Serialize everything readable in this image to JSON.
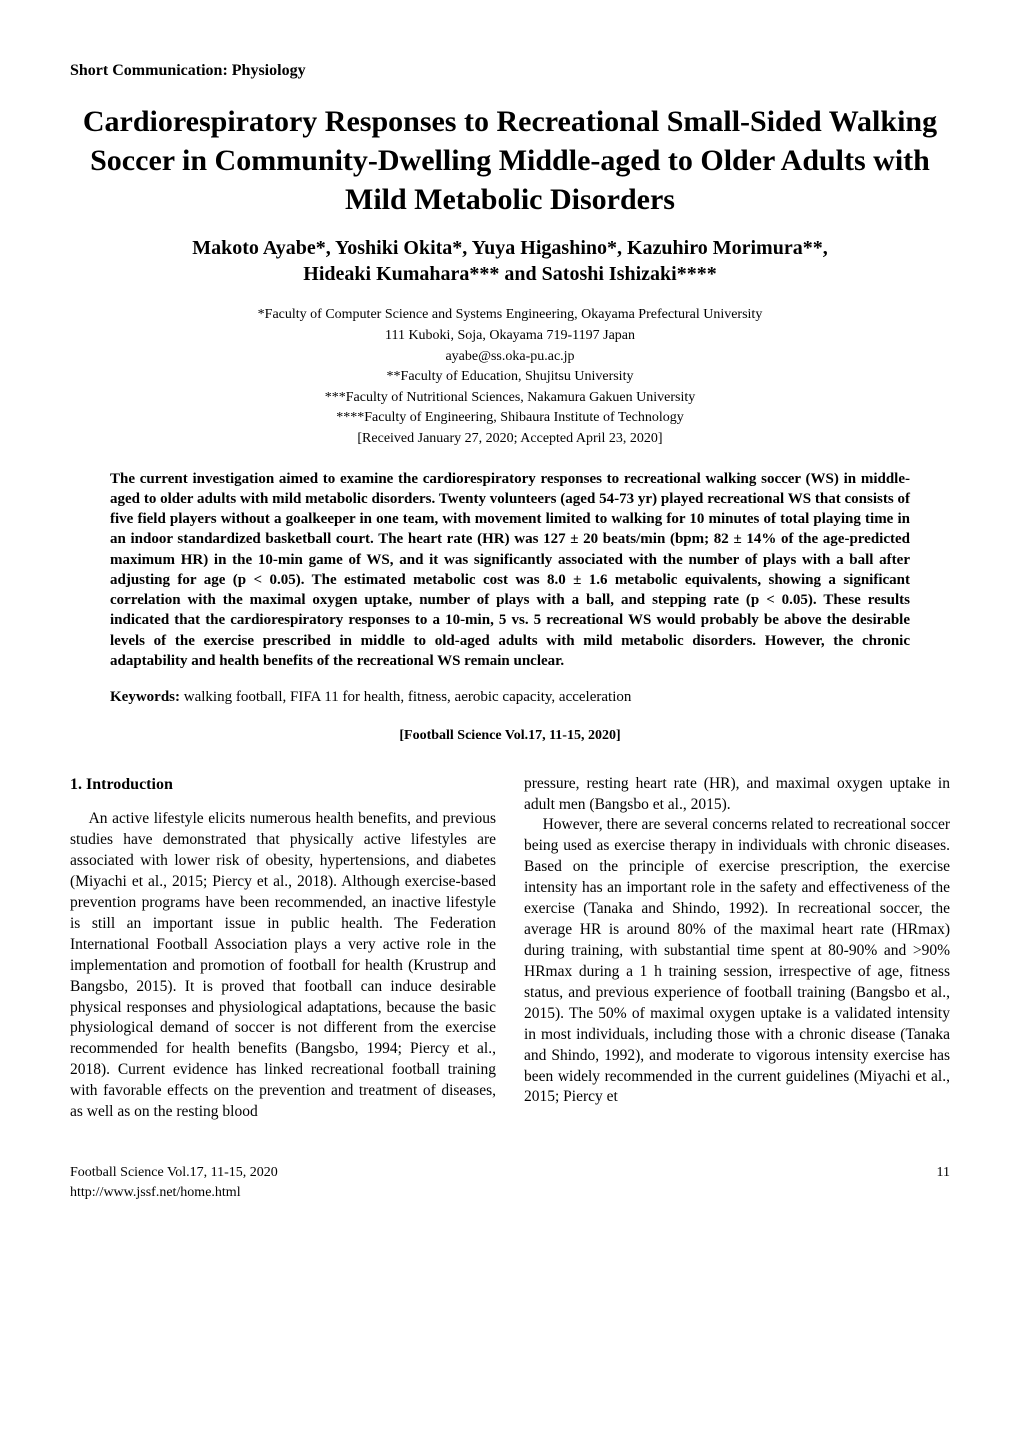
{
  "sectionLabel": "Short Communication: Physiology",
  "title": "Cardiorespiratory Responses to Recreational Small-Sided Walking Soccer in Community-Dwelling Middle-aged to Older Adults with Mild Metabolic Disorders",
  "authorsLine1": "Makoto Ayabe*, Yoshiki Okita*, Yuya Higashino*, Kazuhiro Morimura**,",
  "authorsLine2": "Hideaki Kumahara*** and Satoshi Ishizaki****",
  "affiliations": {
    "a1": "*Faculty of Computer Science and Systems Engineering, Okayama Prefectural University",
    "a2": "111 Kuboki, Soja, Okayama 719-1197 Japan",
    "a3": "ayabe@ss.oka-pu.ac.jp",
    "a4": "**Faculty of Education, Shujitsu University",
    "a5": "***Faculty of Nutritional Sciences, Nakamura Gakuen University",
    "a6": "****Faculty of Engineering, Shibaura Institute of Technology",
    "a7": "[Received January 27, 2020; Accepted April 23, 2020]"
  },
  "abstract": "The current investigation aimed to examine the cardiorespiratory responses to recreational walking soccer (WS) in middle-aged to older adults with mild metabolic disorders. Twenty volunteers (aged 54-73 yr) played recreational WS that consists of five field players without a goalkeeper in one team, with movement limited to walking for 10 minutes of total playing time in an indoor standardized basketball court. The heart rate (HR) was 127 ± 20 beats/min (bpm; 82 ± 14% of the age-predicted maximum HR) in the 10-min game of WS, and it was significantly associated with the number of plays with a ball after adjusting for age (p < 0.05). The estimated metabolic cost was 8.0 ± 1.6 metabolic equivalents, showing a significant correlation with the maximal oxygen uptake, number of plays with a ball, and stepping rate (p < 0.05). These results indicated that the cardiorespiratory responses to a 10-min, 5 vs. 5 recreational WS would probably be above the desirable levels of the exercise prescribed in middle to old-aged adults with mild metabolic disorders. However, the chronic adaptability and health benefits of the recreational WS remain unclear.",
  "keywordsLabel": "Keywords:",
  "keywords": " walking football, FIFA 11 for health, fitness, aerobic capacity, acceleration",
  "citation": "[Football Science Vol.17, 11-15, 2020]",
  "intro": {
    "heading": "1.  Introduction",
    "p1": "An active lifestyle elicits numerous health benefits, and previous studies have demonstrated that physically active lifestyles are associated with lower risk of obesity, hypertensions, and diabetes (Miyachi et al., 2015; Piercy et al., 2018). Although exercise-based prevention programs have been recommended, an inactive lifestyle is still an important issue in public health. The Federation International Football Association plays a very active role in the implementation and promotion of football for health (Krustrup and Bangsbo, 2015). It is proved that football can induce desirable physical responses and physiological adaptations, because the basic physiological demand of soccer is not different from the exercise recommended for health benefits (Bangsbo, 1994; Piercy et al., 2018). Current evidence has linked recreational football training with favorable effects on the prevention and treatment of diseases, as well as on the resting blood",
    "p2a": "pressure, resting heart rate (HR), and maximal oxygen uptake in adult men (Bangsbo et al., 2015).",
    "p2b": "However, there are several concerns related to recreational soccer being used as exercise therapy in individuals with chronic diseases. Based on the principle of exercise prescription, the exercise intensity has an important role in the safety and effectiveness of the exercise (Tanaka and Shindo, 1992). In recreational soccer, the average HR is around 80% of the maximal heart rate (HRmax) during training, with substantial time spent at 80-90% and >90% HRmax during a 1 h training session, irrespective of age, fitness status, and previous experience of football training (Bangsbo et al., 2015). The 50% of maximal oxygen uptake is a validated intensity in most individuals, including those with a chronic disease (Tanaka and Shindo, 1992), and moderate to vigorous intensity exercise has been widely recommended in the current guidelines (Miyachi et al., 2015; Piercy et"
  },
  "footer": {
    "line1": "Football Science Vol.17, 11-15, 2020",
    "line2": "http://www.jssf.net/home.html",
    "page": "11"
  }
}
